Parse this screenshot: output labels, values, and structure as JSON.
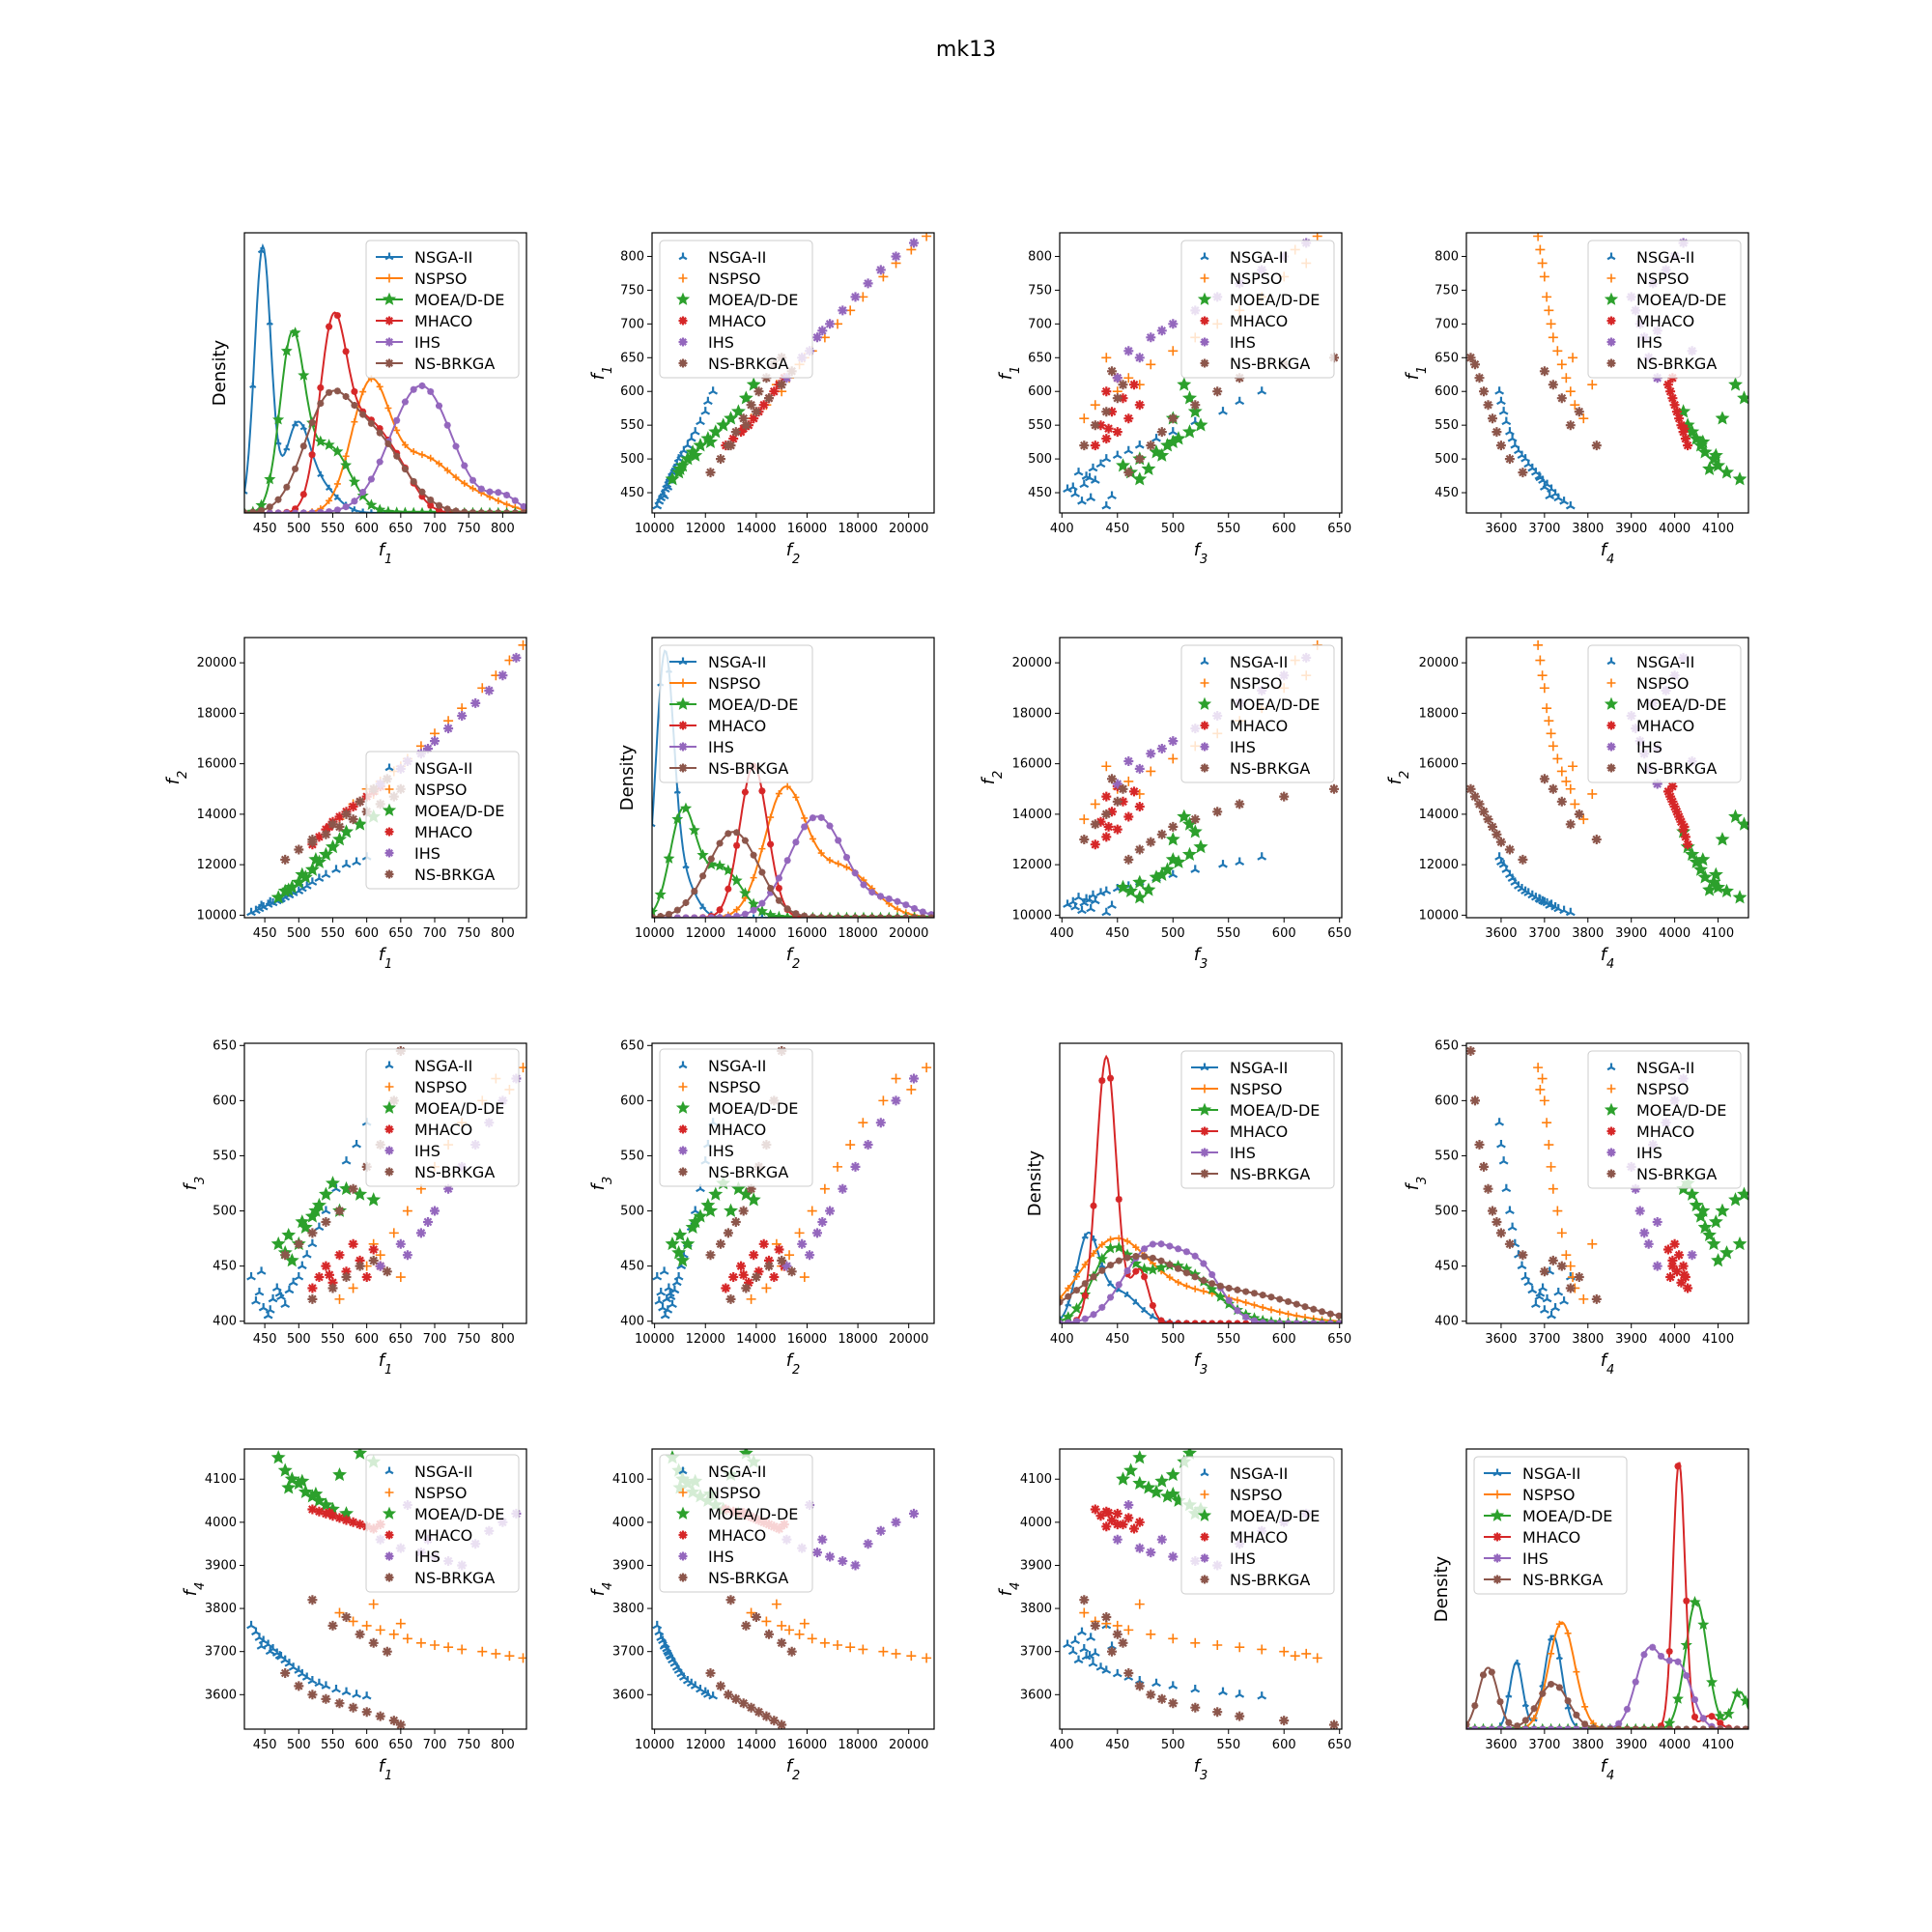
{
  "figure": {
    "suptitle": "mk13"
  },
  "colors": {
    "NSGA-II": "#1f77b4",
    "NSPSO": "#ff7f0e",
    "MOEA/D-DE": "#2ca02c",
    "MHACO": "#d62728",
    "IHS": "#9467bd",
    "NS-BRKGA": "#8c564b"
  },
  "chart_data": {
    "type": "scatter",
    "layout": "4x4 scatter matrix, density curves on diagonal",
    "series_names": [
      "NSGA-II",
      "NSPSO",
      "MOEA/D-DE",
      "MHACO",
      "IHS",
      "NS-BRKGA"
    ],
    "variables": [
      {
        "key": "f1",
        "label": "f",
        "sub": "1",
        "range": [
          420,
          835
        ],
        "ticks": [
          450,
          500,
          550,
          600,
          650,
          700,
          750,
          800
        ]
      },
      {
        "key": "f2",
        "label": "f",
        "sub": "2",
        "range": [
          9900,
          21000
        ],
        "ticks": [
          10000,
          12000,
          14000,
          16000,
          18000,
          20000
        ]
      },
      {
        "key": "f3",
        "label": "f",
        "sub": "3",
        "range": [
          398,
          652
        ],
        "ticks": [
          400,
          450,
          500,
          550,
          600,
          650
        ]
      },
      {
        "key": "f4",
        "label": "f",
        "sub": "4",
        "range": [
          3520,
          4170
        ],
        "ticks": [
          3600,
          3700,
          3800,
          3900,
          4000,
          4100
        ]
      }
    ],
    "density_ylabel": "Density",
    "legend_placement": [
      "upper-right",
      "upper-left",
      "upper-right",
      "upper-right"
    ],
    "density": {
      "f1": [
        {
          "name": "NSGA-II",
          "peaks": [
            [
              447,
              1.0,
              12
            ],
            [
              497,
              0.3,
              18
            ],
            [
              530,
              0.1,
              25
            ]
          ]
        },
        {
          "name": "NSPSO",
          "peaks": [
            [
              605,
              0.47,
              28
            ],
            [
              680,
              0.2,
              40
            ],
            [
              760,
              0.06,
              40
            ]
          ]
        },
        {
          "name": "MOEA/D-DE",
          "peaks": [
            [
              490,
              0.64,
              18
            ],
            [
              545,
              0.25,
              30
            ]
          ]
        },
        {
          "name": "MHACO",
          "peaks": [
            [
              550,
              0.67,
              20
            ],
            [
              600,
              0.32,
              30
            ],
            [
              650,
              0.12,
              25
            ]
          ]
        },
        {
          "name": "IHS",
          "peaks": [
            [
              680,
              0.48,
              45
            ],
            [
              800,
              0.06,
              22
            ]
          ]
        },
        {
          "name": "NS-BRKGA",
          "peaks": [
            [
              540,
              0.36,
              35
            ],
            [
              610,
              0.28,
              45
            ]
          ]
        }
      ],
      "f2": [
        {
          "name": "NSGA-II",
          "peaks": [
            [
              10400,
              1.0,
              350
            ],
            [
              11100,
              0.15,
              500
            ]
          ]
        },
        {
          "name": "NSPSO",
          "peaks": [
            [
              15100,
              0.48,
              800
            ],
            [
              17300,
              0.2,
              1200
            ]
          ]
        },
        {
          "name": "MOEA/D-DE",
          "peaks": [
            [
              11100,
              0.4,
              500
            ],
            [
              12600,
              0.2,
              800
            ]
          ]
        },
        {
          "name": "MHACO",
          "peaks": [
            [
              13900,
              0.6,
              550
            ]
          ]
        },
        {
          "name": "IHS",
          "peaks": [
            [
              16400,
              0.4,
              1100
            ],
            [
              19300,
              0.06,
              900
            ]
          ]
        },
        {
          "name": "NS-BRKGA",
          "peaks": [
            [
              13100,
              0.34,
              1000
            ]
          ]
        }
      ],
      "f3": [
        {
          "name": "NSGA-II",
          "peaks": [
            [
              423,
              0.3,
              10
            ],
            [
              450,
              0.12,
              18
            ]
          ]
        },
        {
          "name": "NSPSO",
          "peaks": [
            [
              445,
              0.25,
              30
            ],
            [
              510,
              0.12,
              60
            ]
          ]
        },
        {
          "name": "MOEA/D-DE",
          "peaks": [
            [
              445,
              0.26,
              18
            ],
            [
              495,
              0.18,
              25
            ],
            [
              530,
              0.08,
              25
            ]
          ]
        },
        {
          "name": "MHACO",
          "peaks": [
            [
              440,
              1.0,
              9
            ],
            [
              470,
              0.2,
              8
            ]
          ]
        },
        {
          "name": "IHS",
          "peaks": [
            [
              480,
              0.28,
              25
            ],
            [
              525,
              0.18,
              20
            ]
          ]
        },
        {
          "name": "NS-BRKGA",
          "peaks": [
            [
              465,
              0.24,
              45
            ],
            [
              570,
              0.1,
              50
            ]
          ]
        }
      ],
      "f4": [
        {
          "name": "NSGA-II",
          "peaks": [
            [
              3635,
              0.25,
              15
            ],
            [
              3720,
              0.35,
              20
            ]
          ]
        },
        {
          "name": "NSPSO",
          "peaks": [
            [
              3740,
              0.4,
              30
            ]
          ]
        },
        {
          "name": "MOEA/D-DE",
          "peaks": [
            [
              4050,
              0.48,
              25
            ],
            [
              4150,
              0.14,
              18
            ]
          ]
        },
        {
          "name": "MHACO",
          "peaks": [
            [
              4010,
              1.0,
              14
            ],
            [
              4080,
              0.05,
              20
            ]
          ]
        },
        {
          "name": "IHS",
          "peaks": [
            [
              3940,
              0.29,
              30
            ],
            [
              4010,
              0.23,
              30
            ]
          ]
        },
        {
          "name": "NS-BRKGA",
          "peaks": [
            [
              3570,
              0.23,
              22
            ],
            [
              3720,
              0.17,
              35
            ]
          ]
        }
      ]
    },
    "points": {
      "NSGA-II": [
        [
          437,
          10180,
          418,
          3745
        ],
        [
          442,
          10250,
          426,
          3732
        ],
        [
          448,
          10320,
          412,
          3725
        ],
        [
          455,
          10420,
          405,
          3716
        ],
        [
          462,
          10480,
          420,
          3706
        ],
        [
          468,
          10560,
          430,
          3696
        ],
        [
          474,
          10640,
          422,
          3688
        ],
        [
          480,
          10700,
          415,
          3680
        ],
        [
          486,
          10790,
          428,
          3672
        ],
        [
          492,
          10880,
          435,
          3663
        ],
        [
          500,
          10950,
          440,
          3656
        ],
        [
          505,
          11050,
          450,
          3648
        ],
        [
          512,
          11150,
          460,
          3640
        ],
        [
          520,
          11300,
          470,
          3632
        ],
        [
          530,
          11450,
          485,
          3626
        ],
        [
          540,
          11600,
          500,
          3620
        ],
        [
          555,
          11800,
          520,
          3612
        ],
        [
          570,
          12000,
          545,
          3606
        ],
        [
          585,
          12100,
          560,
          3600
        ],
        [
          600,
          12300,
          580,
          3596
        ],
        [
          430,
          10100,
          440,
          3760
        ],
        [
          445,
          10380,
          445,
          3712
        ],
        [
          458,
          10520,
          410,
          3700
        ],
        [
          472,
          10610,
          425,
          3690
        ]
      ],
      "NSPSO": [
        [
          560,
          13800,
          420,
          3790
        ],
        [
          580,
          14400,
          430,
          3770
        ],
        [
          600,
          15000,
          450,
          3760
        ],
        [
          620,
          15300,
          460,
          3750
        ],
        [
          640,
          15700,
          480,
          3740
        ],
        [
          660,
          16200,
          500,
          3730
        ],
        [
          680,
          16700,
          520,
          3720
        ],
        [
          700,
          17200,
          540,
          3715
        ],
        [
          720,
          17700,
          560,
          3710
        ],
        [
          740,
          18200,
          580,
          3705
        ],
        [
          770,
          19000,
          600,
          3700
        ],
        [
          790,
          19500,
          620,
          3695
        ],
        [
          810,
          20100,
          610,
          3690
        ],
        [
          830,
          20700,
          630,
          3685
        ],
        [
          610,
          14800,
          470,
          3810
        ],
        [
          650,
          15900,
          440,
          3765
        ]
      ],
      "MOEA/D-DE": [
        [
          470,
          10700,
          470,
          4150
        ],
        [
          480,
          10950,
          462,
          4120
        ],
        [
          490,
          11100,
          455,
          4100
        ],
        [
          500,
          11300,
          470,
          4090
        ],
        [
          510,
          11500,
          485,
          4070
        ],
        [
          520,
          11800,
          495,
          4060
        ],
        [
          530,
          12100,
          505,
          4050
        ],
        [
          540,
          12400,
          515,
          4040
        ],
        [
          550,
          12700,
          525,
          4030
        ],
        [
          560,
          13000,
          500,
          4110
        ],
        [
          570,
          13300,
          520,
          4020
        ],
        [
          590,
          13600,
          515,
          4160
        ],
        [
          610,
          13900,
          510,
          4140
        ],
        [
          485,
          11000,
          478,
          4080
        ],
        [
          505,
          11600,
          490,
          4095
        ],
        [
          525,
          12200,
          500,
          4065
        ]
      ],
      "MHACO": [
        [
          520,
          12800,
          430,
          4030
        ],
        [
          530,
          13100,
          440,
          4025
        ],
        [
          540,
          13400,
          450,
          4020
        ],
        [
          550,
          13700,
          435,
          4015
        ],
        [
          560,
          13900,
          460,
          4010
        ],
        [
          570,
          14100,
          445,
          4005
        ],
        [
          580,
          14300,
          470,
          4000
        ],
        [
          590,
          14500,
          455,
          3995
        ],
        [
          600,
          14700,
          440,
          3990
        ],
        [
          610,
          14900,
          465,
          3985
        ],
        [
          620,
          15100,
          450,
          3995
        ],
        [
          545,
          13500,
          442,
          4022
        ]
      ],
      "IHS": [
        [
          620,
          15200,
          450,
          3960
        ],
        [
          650,
          15800,
          470,
          3940
        ],
        [
          680,
          16400,
          480,
          3930
        ],
        [
          700,
          16900,
          500,
          3920
        ],
        [
          720,
          17400,
          520,
          3910
        ],
        [
          740,
          17900,
          540,
          3900
        ],
        [
          760,
          18400,
          560,
          3950
        ],
        [
          780,
          18900,
          580,
          3980
        ],
        [
          800,
          19500,
          600,
          4000
        ],
        [
          820,
          20200,
          620,
          4020
        ],
        [
          690,
          16600,
          490,
          3960
        ],
        [
          660,
          16100,
          460,
          4040
        ]
      ],
      "NS-BRKGA": [
        [
          480,
          12200,
          460,
          3650
        ],
        [
          500,
          12600,
          470,
          3620
        ],
        [
          520,
          12900,
          480,
          3600
        ],
        [
          540,
          13200,
          490,
          3590
        ],
        [
          560,
          13500,
          500,
          3580
        ],
        [
          580,
          13800,
          520,
          3570
        ],
        [
          600,
          14100,
          540,
          3560
        ],
        [
          620,
          14400,
          560,
          3550
        ],
        [
          640,
          14700,
          600,
          3540
        ],
        [
          650,
          15000,
          645,
          3530
        ],
        [
          550,
          13600,
          430,
          3760
        ],
        [
          570,
          14000,
          440,
          3780
        ],
        [
          590,
          14500,
          450,
          3740
        ],
        [
          610,
          15000,
          455,
          3720
        ],
        [
          630,
          15400,
          445,
          3700
        ],
        [
          520,
          13000,
          420,
          3820
        ]
      ]
    }
  }
}
